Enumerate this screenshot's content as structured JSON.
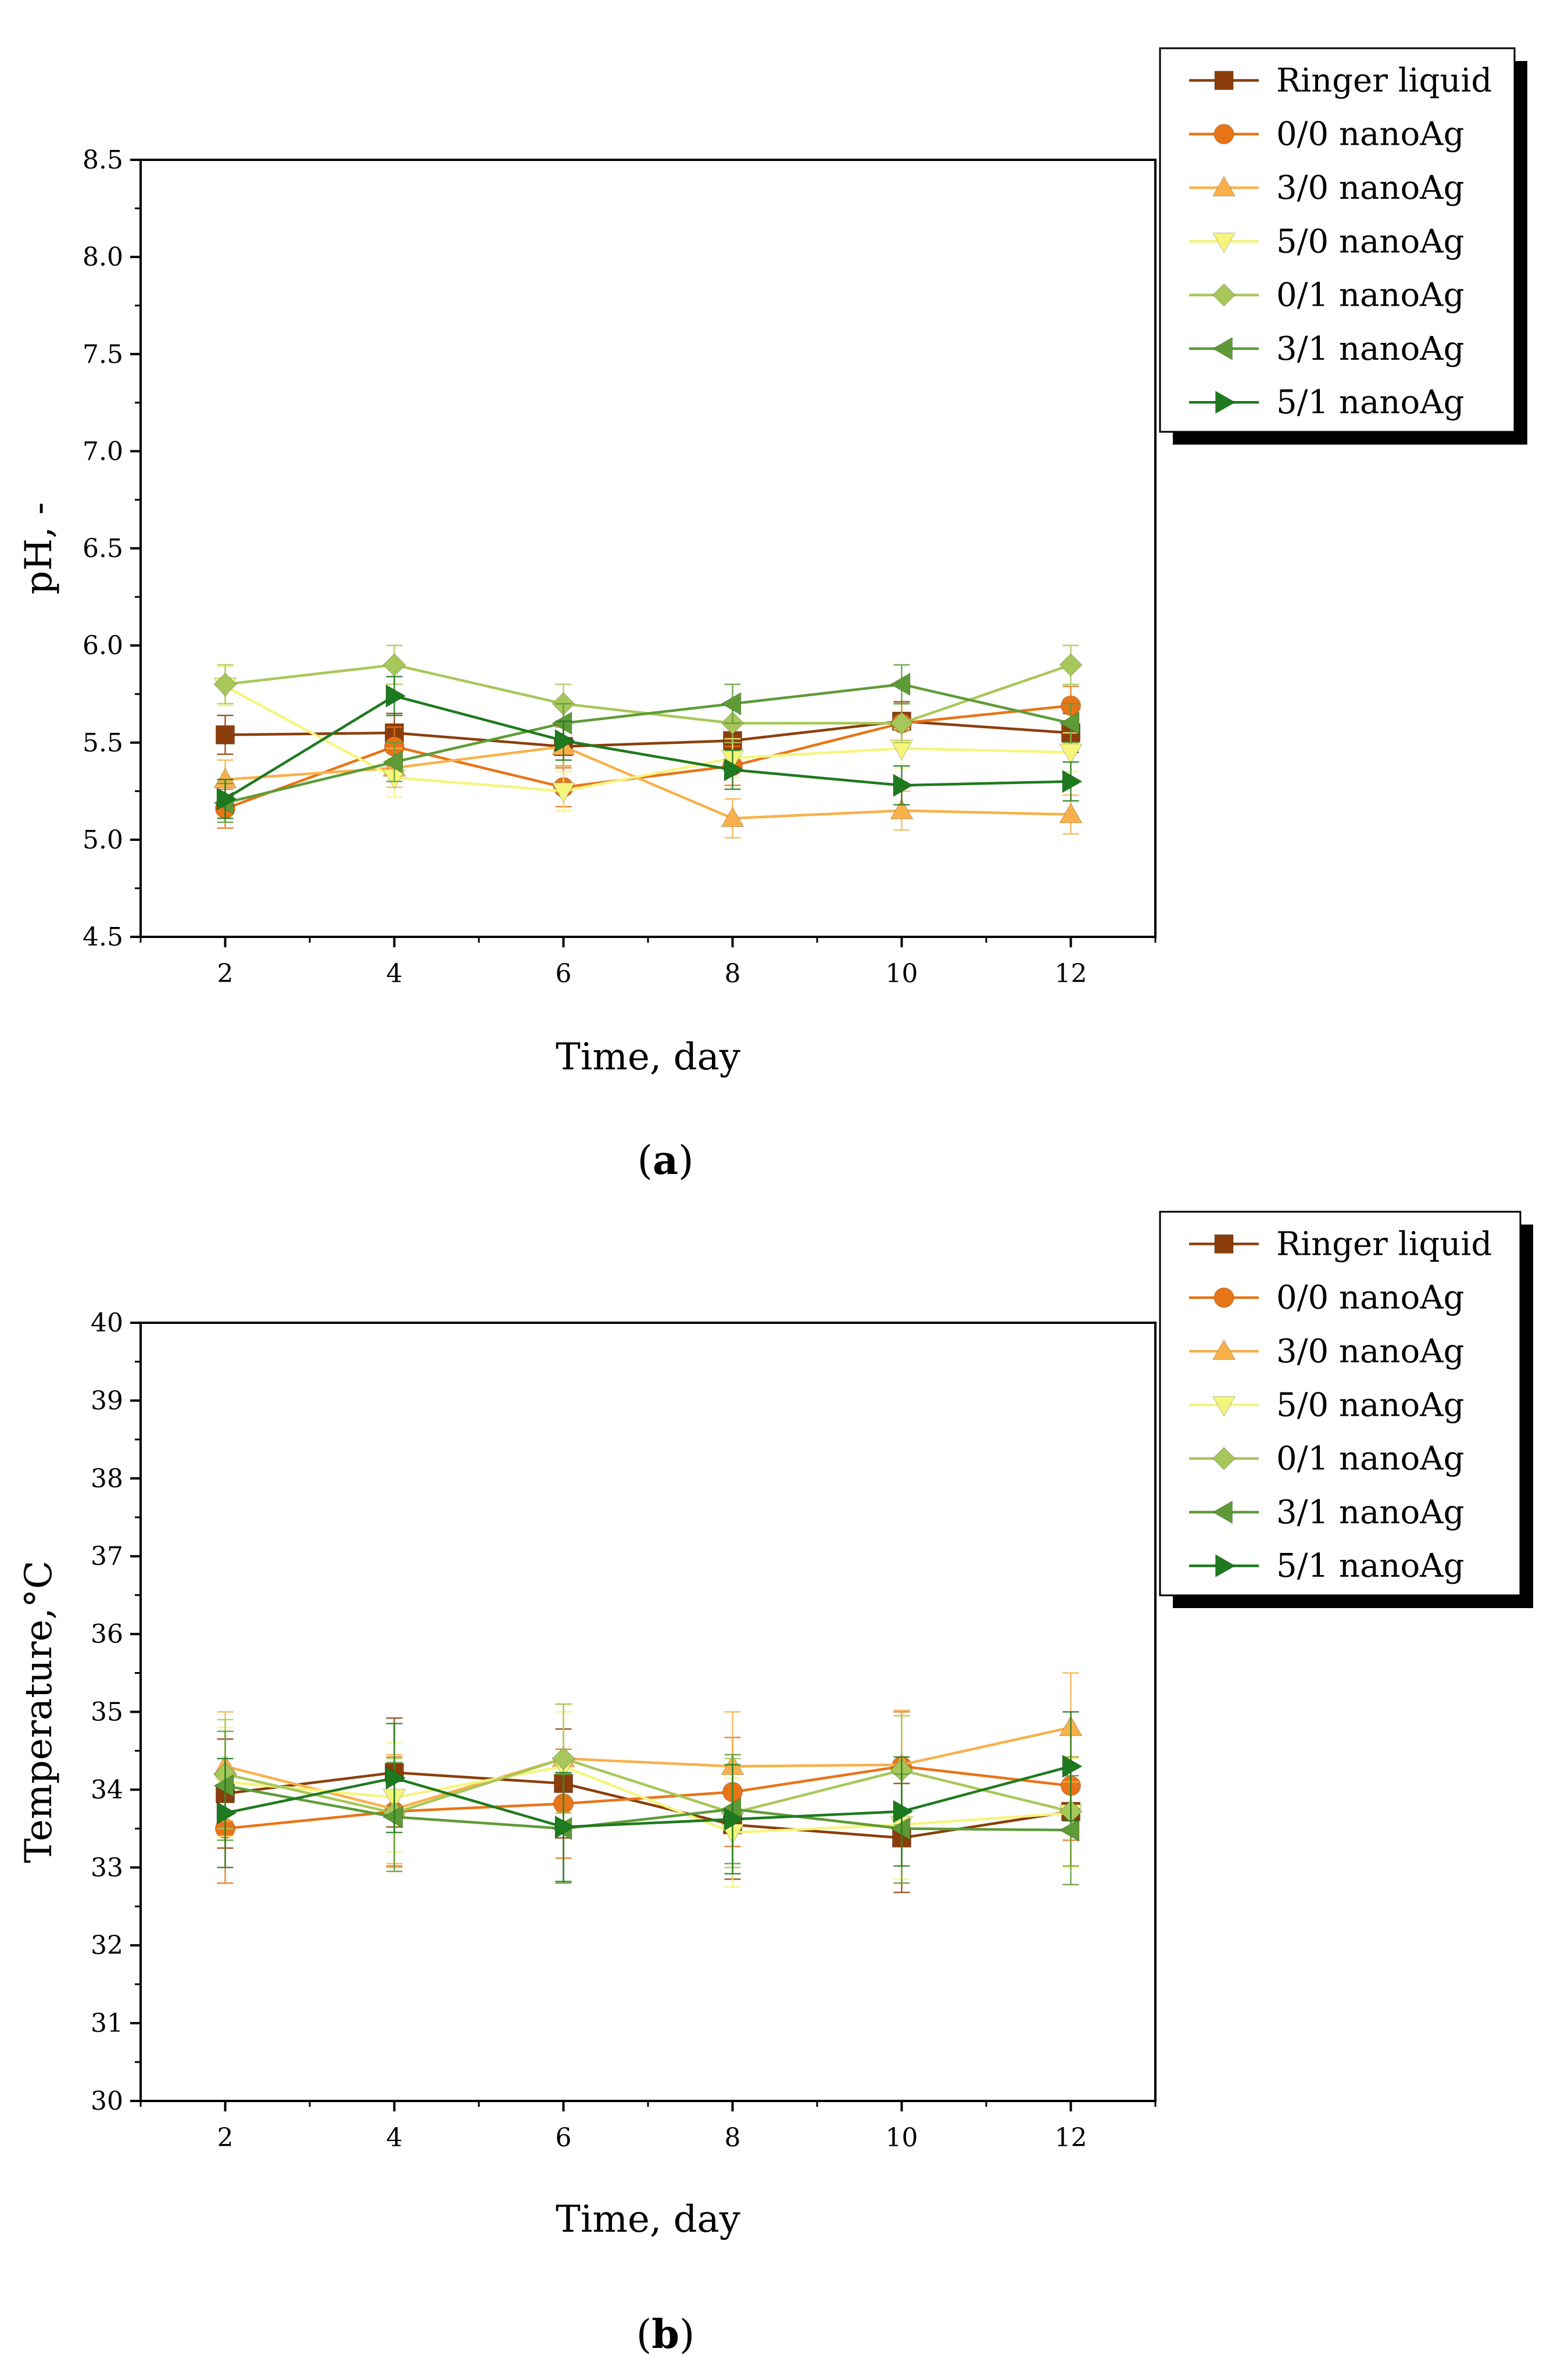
{
  "chart_data": [
    {
      "type": "line",
      "panel_label": {
        "open": "(",
        "letter": "a",
        "close": ")"
      },
      "xlabel": "Time, day",
      "ylabel": "pH, -",
      "x": [
        2,
        4,
        6,
        8,
        10,
        12
      ],
      "xlim": [
        1,
        13
      ],
      "ylim": [
        4.5,
        8.5
      ],
      "xticks": [
        "2",
        "4",
        "6",
        "8",
        "10",
        "12"
      ],
      "yticks": [
        "4.5",
        "5.0",
        "5.5",
        "6.0",
        "6.5",
        "7.0",
        "7.5",
        "8.0",
        "8.5"
      ],
      "legend_position": "top-right outside",
      "series": [
        {
          "name": "Ringer liquid",
          "marker": "square",
          "color": "#8B3E0B",
          "values": [
            5.54,
            5.55,
            5.48,
            5.51,
            5.61,
            5.55
          ],
          "errors": [
            0.1,
            0.1,
            0.1,
            0.1,
            0.1,
            0.1
          ]
        },
        {
          "name": "0/0 nanoAg",
          "marker": "circle",
          "color": "#E87418",
          "values": [
            5.16,
            5.48,
            5.27,
            5.38,
            5.6,
            5.69
          ],
          "errors": [
            0.1,
            0.1,
            0.1,
            0.1,
            0.1,
            0.1
          ]
        },
        {
          "name": "3/0 nanoAg",
          "marker": "triangle-up",
          "color": "#F8B14A",
          "values": [
            5.31,
            5.37,
            5.48,
            5.11,
            5.15,
            5.13
          ],
          "errors": [
            0.1,
            0.1,
            0.1,
            0.1,
            0.1,
            0.1
          ]
        },
        {
          "name": "5/0 nanoAg",
          "marker": "triangle-down",
          "color": "#F5F57E",
          "values": [
            5.79,
            5.32,
            5.25,
            5.42,
            5.47,
            5.45
          ],
          "errors": [
            0.1,
            0.1,
            0.1,
            0.1,
            0.1,
            0.1
          ]
        },
        {
          "name": "0/1 nanoAg",
          "marker": "diamond",
          "color": "#A8C75A",
          "values": [
            5.8,
            5.9,
            5.7,
            5.6,
            5.6,
            5.9
          ],
          "errors": [
            0.1,
            0.1,
            0.1,
            0.1,
            0.1,
            0.1
          ]
        },
        {
          "name": "3/1 nanoAg",
          "marker": "triangle-left",
          "color": "#5E9B37",
          "values": [
            5.19,
            5.4,
            5.6,
            5.7,
            5.8,
            5.6
          ],
          "errors": [
            0.1,
            0.1,
            0.1,
            0.1,
            0.1,
            0.1
          ]
        },
        {
          "name": "5/1 nanoAg",
          "marker": "triangle-right",
          "color": "#1E7A1E",
          "values": [
            5.21,
            5.74,
            5.51,
            5.36,
            5.28,
            5.3
          ],
          "errors": [
            0.1,
            0.1,
            0.1,
            0.1,
            0.1,
            0.1
          ]
        }
      ]
    },
    {
      "type": "line",
      "panel_label": {
        "open": "(",
        "letter": "b",
        "close": ")"
      },
      "xlabel": "Time, day",
      "ylabel": "Temperature,°C",
      "x": [
        2,
        4,
        6,
        8,
        10,
        12
      ],
      "xlim": [
        1,
        13
      ],
      "ylim": [
        30,
        40
      ],
      "xticks": [
        "2",
        "4",
        "6",
        "8",
        "10",
        "12"
      ],
      "yticks": [
        "30",
        "31",
        "32",
        "33",
        "34",
        "35",
        "36",
        "37",
        "38",
        "39",
        "40"
      ],
      "legend_position": "top-right outside",
      "series": [
        {
          "name": "Ringer liquid",
          "marker": "square",
          "color": "#8B3E0B",
          "values": [
            33.95,
            34.22,
            34.08,
            33.55,
            33.38,
            33.72
          ],
          "errors": [
            0.7,
            0.7,
            0.7,
            0.7,
            0.7,
            0.7
          ]
        },
        {
          "name": "0/0 nanoAg",
          "marker": "circle",
          "color": "#E87418",
          "values": [
            33.5,
            33.72,
            33.82,
            33.97,
            34.3,
            34.05
          ],
          "errors": [
            0.7,
            0.7,
            0.7,
            0.7,
            0.7,
            0.7
          ]
        },
        {
          "name": "3/0 nanoAg",
          "marker": "triangle-up",
          "color": "#F8B14A",
          "values": [
            34.3,
            33.75,
            34.4,
            34.3,
            34.32,
            34.8
          ],
          "errors": [
            0.7,
            0.7,
            0.7,
            0.7,
            0.7,
            0.7
          ]
        },
        {
          "name": "5/0 nanoAg",
          "marker": "triangle-down",
          "color": "#F5F57E",
          "values": [
            34.1,
            33.9,
            34.3,
            33.45,
            33.55,
            33.7
          ],
          "errors": [
            0.7,
            0.7,
            0.7,
            0.7,
            0.7,
            0.7
          ]
        },
        {
          "name": "0/1 nanoAg",
          "marker": "diamond",
          "color": "#A8C75A",
          "values": [
            34.2,
            33.7,
            34.4,
            33.7,
            34.25,
            33.72
          ],
          "errors": [
            0.7,
            0.7,
            0.7,
            0.7,
            0.7,
            0.7
          ]
        },
        {
          "name": "3/1 nanoAg",
          "marker": "triangle-left",
          "color": "#5E9B37",
          "values": [
            34.05,
            33.65,
            33.5,
            33.75,
            33.5,
            33.48
          ],
          "errors": [
            0.7,
            0.7,
            0.7,
            0.7,
            0.7,
            0.7
          ]
        },
        {
          "name": "5/1 nanoAg",
          "marker": "triangle-right",
          "color": "#1E7A1E",
          "values": [
            33.7,
            34.15,
            33.52,
            33.62,
            33.72,
            34.3
          ],
          "errors": [
            0.7,
            0.7,
            0.7,
            0.7,
            0.7,
            0.7
          ]
        }
      ]
    }
  ]
}
